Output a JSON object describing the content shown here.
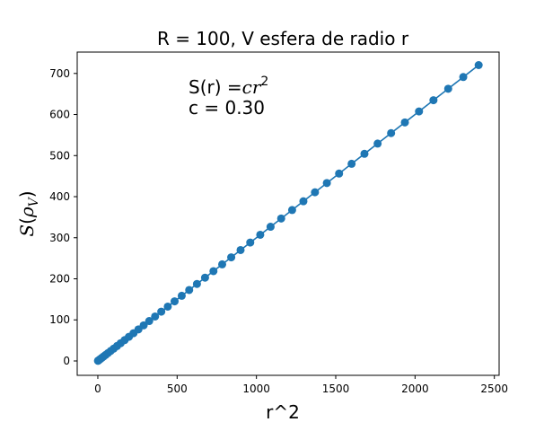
{
  "chart_data": {
    "type": "line",
    "title": "R = 100, V esfera de radio r",
    "xlabel": "r^2",
    "ylabel": "S(ρ_V)",
    "xlim": [
      -130,
      2530
    ],
    "ylim": [
      -35,
      752
    ],
    "xticks": [
      0,
      500,
      1000,
      1500,
      2000,
      2500
    ],
    "yticks": [
      0,
      100,
      200,
      300,
      400,
      500,
      600,
      700
    ],
    "grid": false,
    "legend": "none",
    "series": [
      {
        "color": "#1f77b4",
        "marker": "circle",
        "x": [
          1,
          4,
          9,
          16,
          25,
          36,
          49,
          64,
          81,
          100,
          121,
          144,
          169,
          196,
          225,
          256,
          289,
          324,
          361,
          400,
          441,
          484,
          529,
          576,
          625,
          676,
          729,
          784,
          841,
          900,
          961,
          1024,
          1089,
          1156,
          1225,
          1296,
          1369,
          1444,
          1521,
          1600,
          1681,
          1764,
          1849,
          1936,
          2025,
          2116,
          2209,
          2304,
          2401
        ],
        "y": [
          0.3,
          1.2,
          2.7,
          4.8,
          7.5,
          10.8,
          14.7,
          19.2,
          24.3,
          30.0,
          36.3,
          43.2,
          50.7,
          58.8,
          67.5,
          76.8,
          86.7,
          97.2,
          108.3,
          120.0,
          132.3,
          145.2,
          158.7,
          172.8,
          187.5,
          202.8,
          218.7,
          235.2,
          252.3,
          270.0,
          288.3,
          307.2,
          326.7,
          346.8,
          367.5,
          388.8,
          410.7,
          433.2,
          456.3,
          480.0,
          504.3,
          529.2,
          554.7,
          580.8,
          607.5,
          634.8,
          662.7,
          691.2,
          720.3
        ]
      }
    ],
    "annotations": [
      {
        "prefix": "S(r)  =",
        "math": "cr",
        "sup": "2"
      },
      {
        "text": "c = 0.30"
      }
    ]
  }
}
